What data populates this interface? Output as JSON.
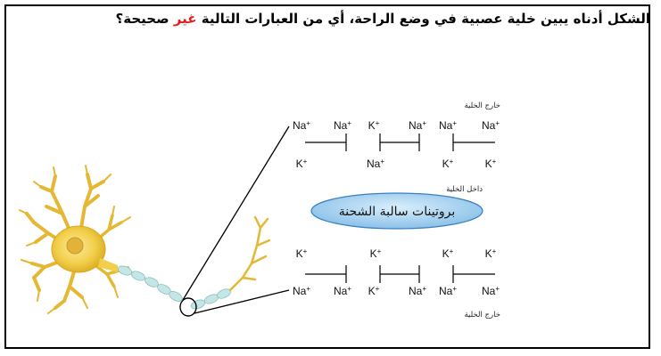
{
  "question": {
    "part1": "الشكل أدناه يبين خلية عصبية في وضع الراحة، أي من العبارات التالية ",
    "negation": "غير",
    "part2": " صحيحة؟",
    "negation_color": "#e02020"
  },
  "labels": {
    "outside_cell": "خارج الخلية",
    "inside_cell": "داخل الخلية",
    "protein": "بروتينات سالبة الشحنة"
  },
  "ions": {
    "top_outside": [
      "Na",
      "Na",
      "K",
      "Na",
      "Na",
      "Na"
    ],
    "top_inside": [
      "K",
      "Na",
      "K",
      "K"
    ],
    "bottom_inside": [
      "K",
      "K",
      "K",
      "K"
    ],
    "bottom_outside": [
      "Na",
      "Na",
      "K",
      "Na",
      "Na",
      "Na"
    ],
    "charge": "+"
  },
  "colors": {
    "neuron_body": "#f2cf4a",
    "axon": "#c4e6e6",
    "protein_fill": "#8fc6ec",
    "protein_stroke": "#3a7fc0"
  }
}
